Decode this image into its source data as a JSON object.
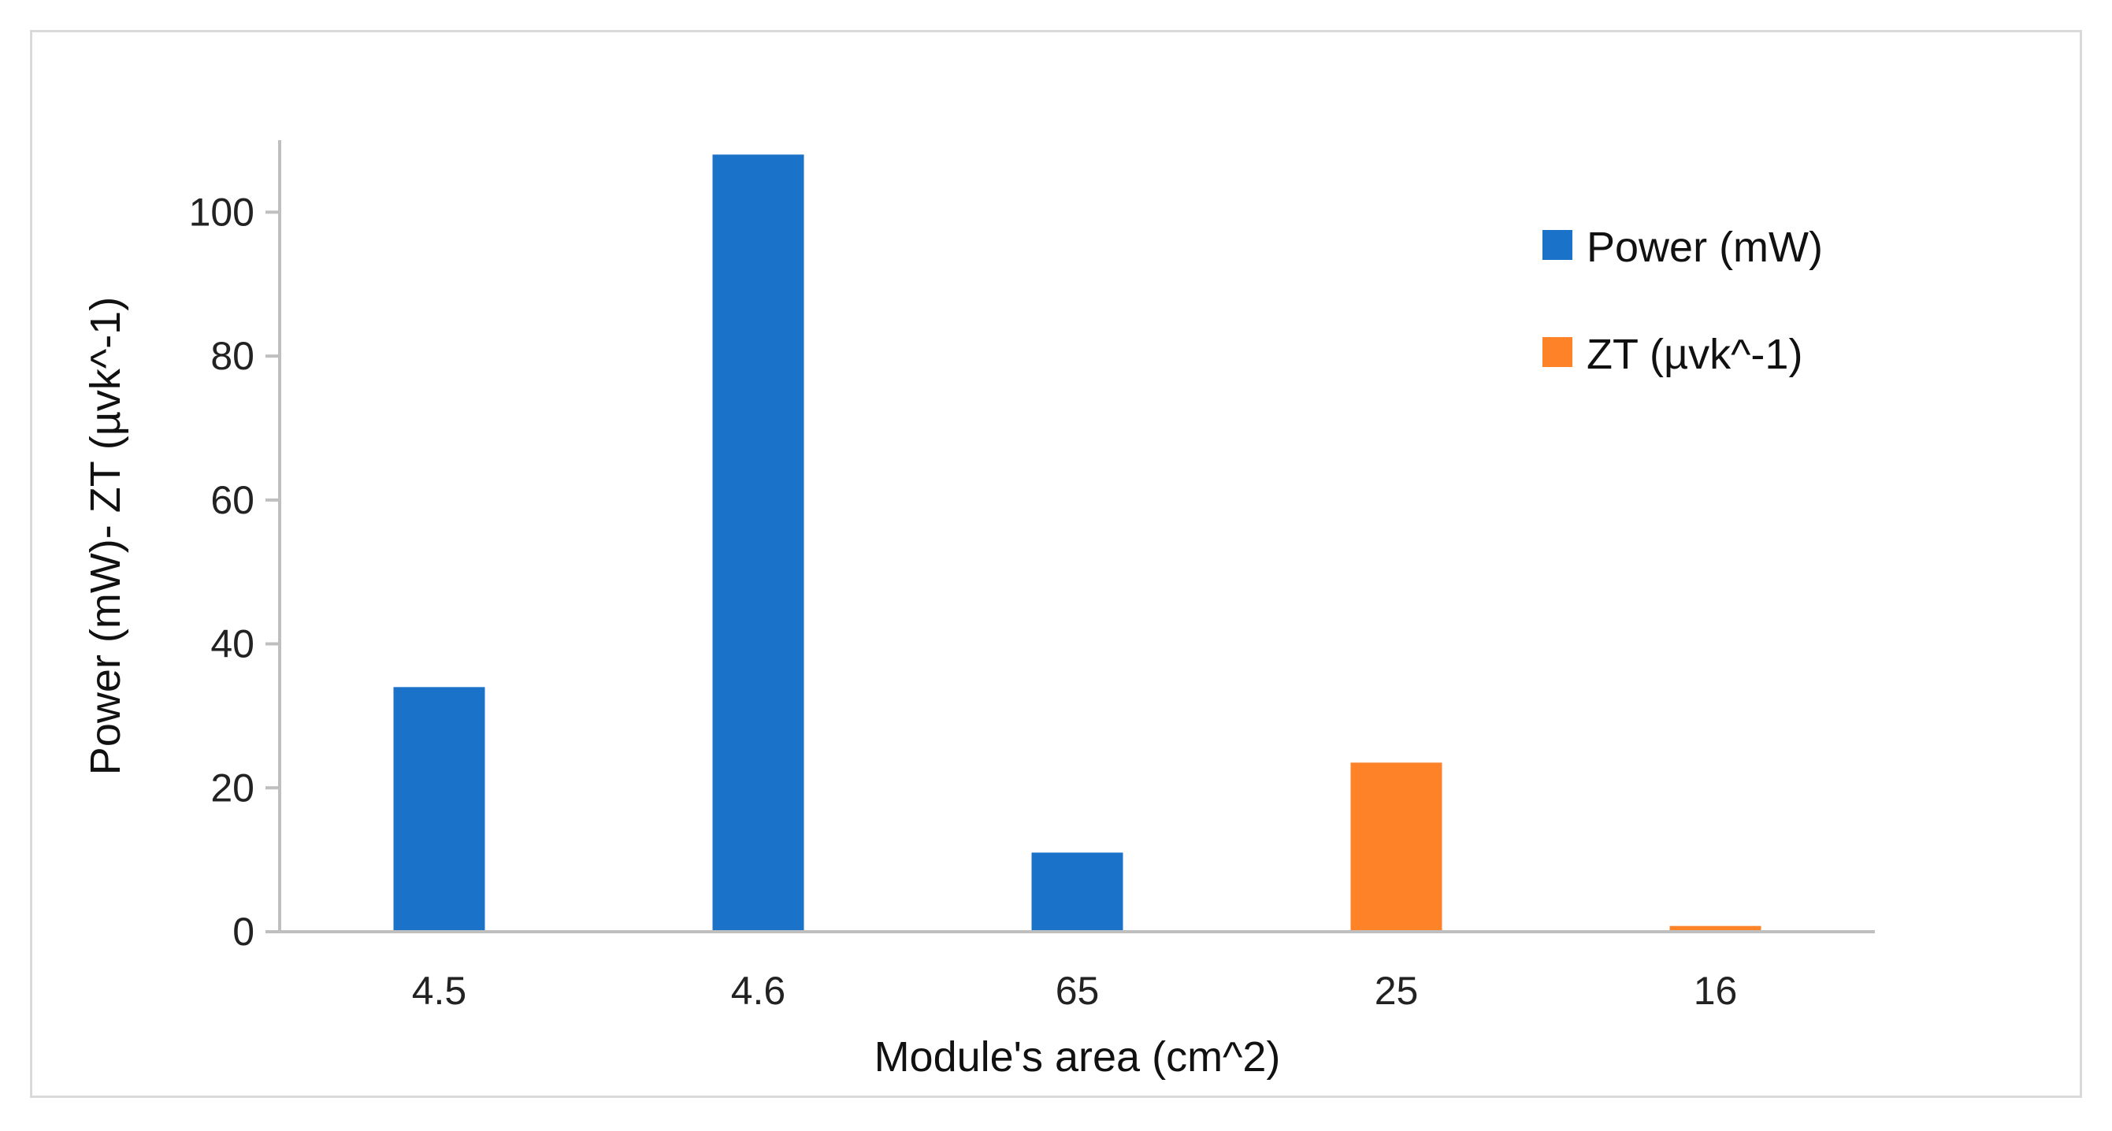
{
  "chart_data": {
    "type": "bar",
    "title": "",
    "xlabel": "Module's area (cm^2)",
    "ylabel": "Power (mW)- ZT (µvk^-1)",
    "categories": [
      "4.5",
      "4.6",
      "65",
      "25",
      "16"
    ],
    "series": [
      {
        "name": "Power (mW)",
        "color": "#1b72c9",
        "values": [
          34,
          108,
          11,
          null,
          null
        ]
      },
      {
        "name": "ZT (µvk^-1)",
        "color": "#fd8228",
        "values": [
          null,
          null,
          null,
          23.5,
          0.8
        ]
      }
    ],
    "ylim": [
      0,
      110
    ],
    "yticks": [
      0,
      20,
      40,
      60,
      80,
      100
    ],
    "grid": false,
    "legend_position": "right"
  }
}
